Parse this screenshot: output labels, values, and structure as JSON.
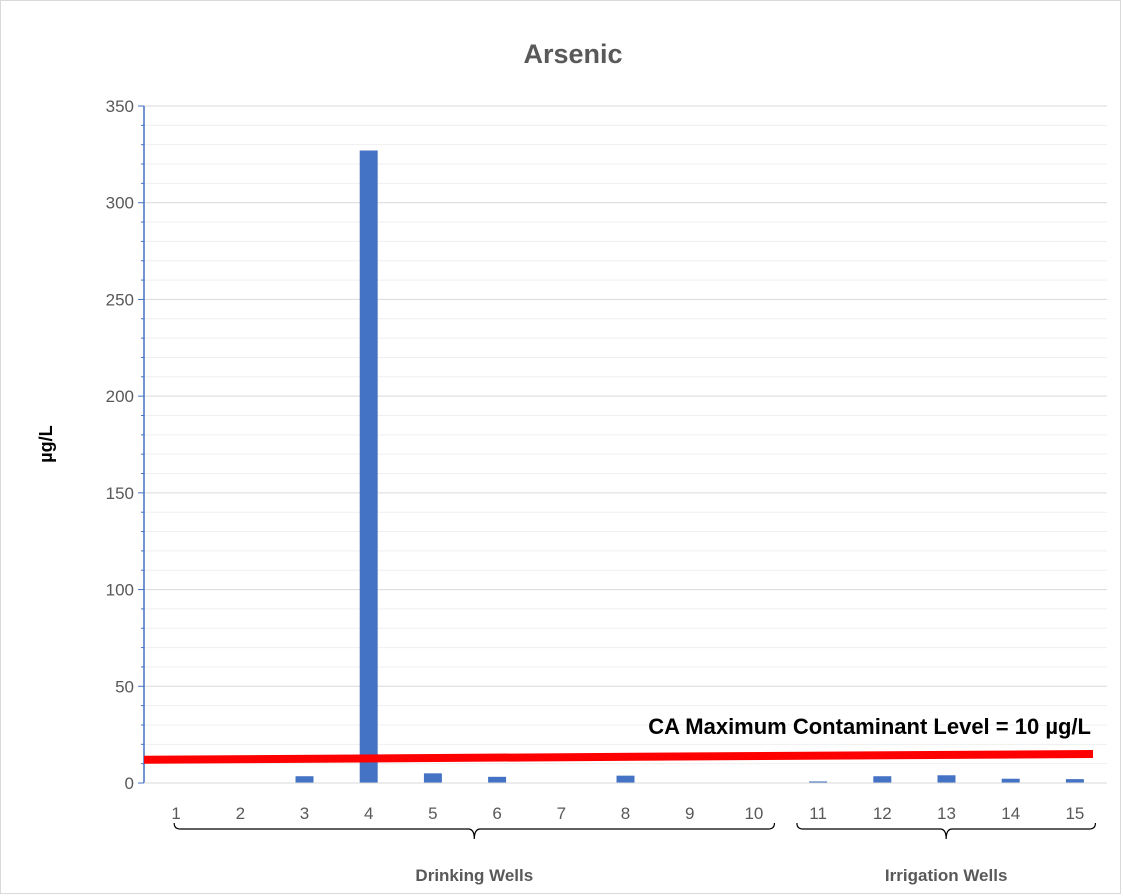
{
  "chart_data": {
    "type": "bar",
    "title": "Arsenic",
    "xlabel": "",
    "ylabel": "µg/L",
    "ylim": [
      0,
      350
    ],
    "yticks": [
      0,
      50,
      100,
      150,
      200,
      250,
      300,
      350
    ],
    "categories": [
      "1",
      "2",
      "3",
      "4",
      "5",
      "6",
      "7",
      "8",
      "9",
      "10",
      "11",
      "12",
      "13",
      "14",
      "15"
    ],
    "values": [
      0,
      0,
      3.5,
      327,
      5,
      3.2,
      0,
      3.8,
      0,
      0,
      0.8,
      3.5,
      4,
      2.2,
      2
    ],
    "bar_color": "#4472c4",
    "grid": true,
    "legend": "none",
    "reference_line": {
      "label": "CA Maximum Contaminant Level = 10 µg/L",
      "y_start": 12,
      "y_end": 15,
      "color": "#ff0000"
    },
    "groups": [
      {
        "label": "Drinking Wells",
        "from": "1",
        "to": "10"
      },
      {
        "label": "Irrigation Wells",
        "from": "11",
        "to": "15"
      }
    ]
  }
}
